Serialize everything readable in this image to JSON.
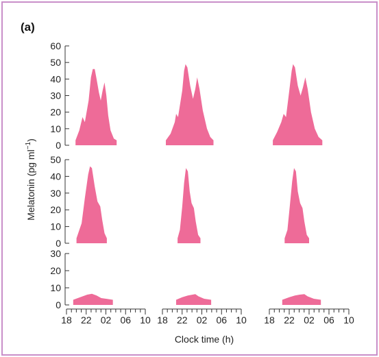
{
  "panel_label": "(a)",
  "chart_data": {
    "type": "area",
    "ylabel": "Melatonin (pg ml",
    "ylabel_superscript": "−1",
    "ylabel_suffix": ")",
    "xlabel": "Clock time (h)",
    "x_ticks": [
      "18",
      "22",
      "02",
      "06",
      "10"
    ],
    "fill_color": "#ee6b98",
    "rows": [
      {
        "ylim": [
          0,
          60
        ],
        "yticks": [
          0,
          10,
          20,
          30,
          40,
          50,
          60
        ],
        "panels": [
          {
            "series": [
              [
                19.5,
                3
              ],
              [
                20.3,
                9
              ],
              [
                21,
                17
              ],
              [
                21.5,
                14
              ],
              [
                22.3,
                27
              ],
              [
                22.8,
                41
              ],
              [
                23.2,
                46
              ],
              [
                23.6,
                46
              ],
              [
                24,
                40
              ],
              [
                24.5,
                32
              ],
              [
                24.9,
                27
              ],
              [
                25.3,
                33
              ],
              [
                25.7,
                38
              ],
              [
                26.1,
                30
              ],
              [
                26.5,
                18
              ],
              [
                27,
                9
              ],
              [
                27.7,
                4
              ],
              [
                28.3,
                3
              ]
            ]
          },
          {
            "series": [
              [
                18.3,
                3
              ],
              [
                19.3,
                7
              ],
              [
                20.2,
                14
              ],
              [
                20.5,
                19
              ],
              [
                20.9,
                17
              ],
              [
                21.8,
                33
              ],
              [
                22.2,
                45
              ],
              [
                22.5,
                49
              ],
              [
                22.9,
                47
              ],
              [
                23.5,
                36
              ],
              [
                24.1,
                28
              ],
              [
                24.6,
                34
              ],
              [
                25,
                41
              ],
              [
                25.5,
                34
              ],
              [
                26.2,
                21
              ],
              [
                27.1,
                10
              ],
              [
                27.8,
                5
              ],
              [
                28.5,
                3
              ]
            ]
          },
          {
            "series": [
              [
                18.3,
                3
              ],
              [
                19.2,
                8
              ],
              [
                20.1,
                14
              ],
              [
                20.6,
                19
              ],
              [
                21.1,
                17
              ],
              [
                21.8,
                33
              ],
              [
                22.3,
                45
              ],
              [
                22.6,
                49
              ],
              [
                23,
                47
              ],
              [
                23.6,
                36
              ],
              [
                24.2,
                30
              ],
              [
                24.7,
                35
              ],
              [
                25.2,
                41
              ],
              [
                25.7,
                34
              ],
              [
                26.4,
                20
              ],
              [
                27.2,
                10
              ],
              [
                28,
                5
              ],
              [
                28.8,
                3
              ]
            ]
          }
        ]
      },
      {
        "ylim": [
          0,
          50
        ],
        "yticks": [
          0,
          10,
          20,
          30,
          40,
          50
        ],
        "panels": [
          {
            "series": [
              [
                19.7,
                3
              ],
              [
                20.8,
                12
              ],
              [
                21.5,
                27
              ],
              [
                22.2,
                41
              ],
              [
                22.6,
                46
              ],
              [
                23,
                45
              ],
              [
                23.6,
                34
              ],
              [
                24.2,
                25
              ],
              [
                24.8,
                22
              ],
              [
                25.2,
                14
              ],
              [
                25.7,
                6
              ],
              [
                26.2,
                3
              ]
            ]
          },
          {
            "series": [
              [
                20.8,
                3
              ],
              [
                21.3,
                8
              ],
              [
                21.8,
                22
              ],
              [
                22.2,
                36
              ],
              [
                22.6,
                45
              ],
              [
                23,
                43
              ],
              [
                23.4,
                31
              ],
              [
                23.8,
                24
              ],
              [
                24.3,
                21
              ],
              [
                24.7,
                13
              ],
              [
                25.2,
                5
              ],
              [
                25.7,
                3
              ]
            ]
          },
          {
            "series": [
              [
                20.8,
                3
              ],
              [
                21.4,
                8
              ],
              [
                21.9,
                22
              ],
              [
                22.4,
                37
              ],
              [
                22.8,
                45
              ],
              [
                23.2,
                43
              ],
              [
                23.6,
                31
              ],
              [
                24.1,
                24
              ],
              [
                24.6,
                21
              ],
              [
                25,
                13
              ],
              [
                25.5,
                5
              ],
              [
                26,
                3
              ]
            ]
          }
        ]
      },
      {
        "ylim": [
          0,
          30
        ],
        "yticks": [
          0,
          10,
          20,
          30
        ],
        "panels": [
          {
            "series": [
              [
                19,
                3
              ],
              [
                20.5,
                4.5
              ],
              [
                22,
                6
              ],
              [
                23,
                6.5
              ],
              [
                24,
                5.5
              ],
              [
                25,
                4
              ],
              [
                26.3,
                3.5
              ],
              [
                27.5,
                3
              ]
            ]
          },
          {
            "series": [
              [
                20.5,
                3
              ],
              [
                21.8,
                4.5
              ],
              [
                23,
                5.5
              ],
              [
                24,
                6
              ],
              [
                24.6,
                6.3
              ],
              [
                25.3,
                5
              ],
              [
                26.5,
                3.6
              ],
              [
                28,
                3
              ]
            ]
          },
          {
            "series": [
              [
                20.3,
                3
              ],
              [
                21.8,
                4.5
              ],
              [
                23,
                5.5
              ],
              [
                24,
                6
              ],
              [
                25,
                6.3
              ],
              [
                25.7,
                5
              ],
              [
                27,
                3.6
              ],
              [
                28.5,
                3
              ]
            ]
          }
        ]
      }
    ]
  }
}
